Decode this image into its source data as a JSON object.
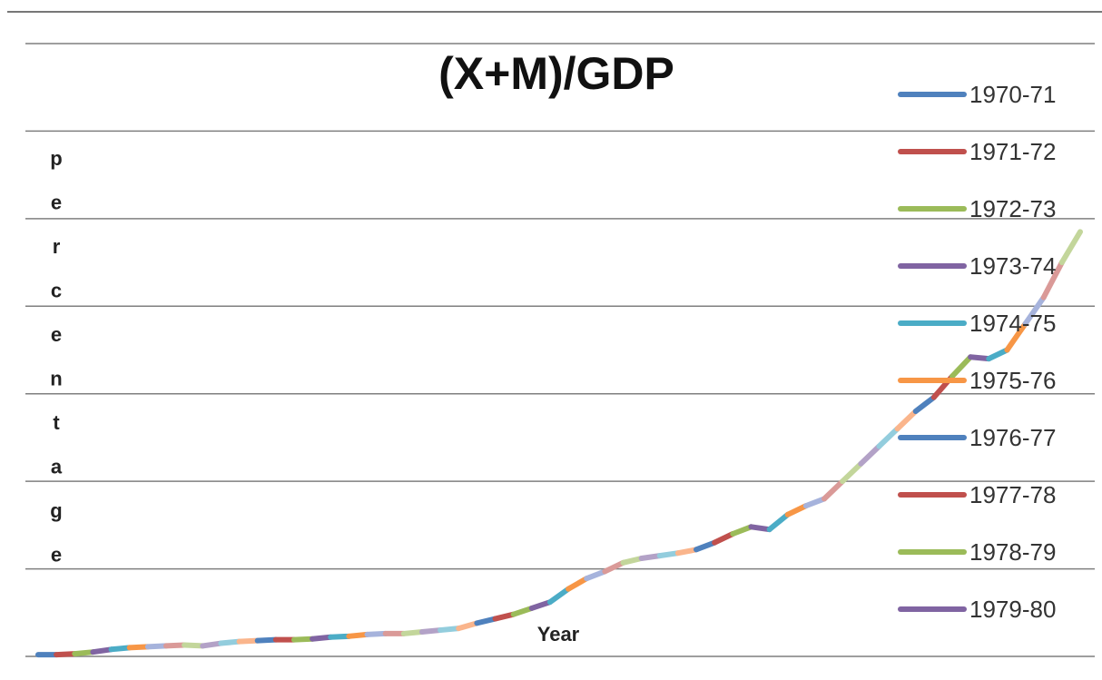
{
  "chart_data": {
    "type": "line",
    "title": "(X+M)/GDP",
    "xlabel": "Year",
    "ylabel": "percentage",
    "ylim": [
      0,
      7
    ],
    "grid": true,
    "legend_position": "right",
    "legend": [
      {
        "label": "1970-71",
        "color": "#4f81bd"
      },
      {
        "label": "1971-72",
        "color": "#c0504d"
      },
      {
        "label": "1972-73",
        "color": "#9bbb59"
      },
      {
        "label": "1973-74",
        "color": "#8064a2"
      },
      {
        "label": "1974-75",
        "color": "#4bacc6"
      },
      {
        "label": "1975-76",
        "color": "#f79646"
      },
      {
        "label": "1976-77",
        "color": "#4f81bd"
      },
      {
        "label": "1977-78",
        "color": "#c0504d"
      },
      {
        "label": "1978-79",
        "color": "#9bbb59"
      },
      {
        "label": "1979-80",
        "color": "#8064a2"
      }
    ],
    "x": [
      1,
      2,
      3,
      4,
      5,
      6,
      7,
      8,
      9,
      10,
      11,
      12,
      13,
      14,
      15,
      16,
      17,
      18,
      19,
      20,
      21,
      22,
      23,
      24,
      25,
      26,
      27,
      28,
      29,
      30,
      31,
      32,
      33,
      34,
      35,
      36,
      37,
      38,
      39,
      40,
      41,
      42,
      43,
      44,
      45,
      46,
      47,
      48,
      49,
      50,
      51,
      52,
      53,
      54,
      55,
      56,
      57,
      58
    ],
    "values": [
      0.02,
      0.02,
      0.03,
      0.05,
      0.08,
      0.1,
      0.11,
      0.12,
      0.13,
      0.12,
      0.15,
      0.17,
      0.18,
      0.19,
      0.19,
      0.2,
      0.22,
      0.23,
      0.25,
      0.26,
      0.26,
      0.28,
      0.3,
      0.32,
      0.38,
      0.43,
      0.48,
      0.55,
      0.62,
      0.77,
      0.89,
      0.97,
      1.07,
      1.12,
      1.15,
      1.18,
      1.22,
      1.3,
      1.4,
      1.48,
      1.45,
      1.62,
      1.72,
      1.8,
      2.0,
      2.2,
      2.4,
      2.6,
      2.8,
      2.96,
      3.2,
      3.42,
      3.4,
      3.5,
      3.8,
      4.1,
      4.5,
      4.85
    ],
    "segment_colors": [
      "#4f81bd",
      "#c0504d",
      "#9bbb59",
      "#8064a2",
      "#4bacc6",
      "#f79646",
      "#a6b3dc",
      "#da9a98",
      "#c3d69b",
      "#b3a2c7",
      "#93cddd",
      "#fab58c"
    ]
  }
}
